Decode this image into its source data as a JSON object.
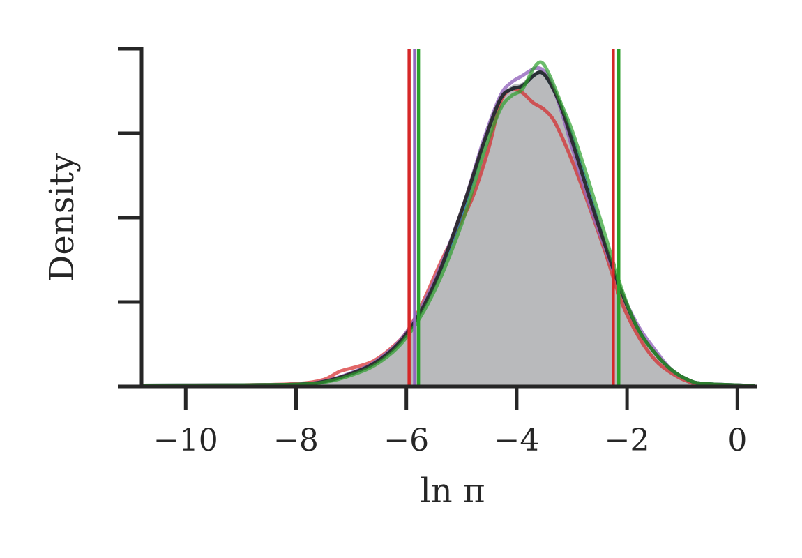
{
  "chart_data": {
    "type": "area",
    "xlabel": "ln π",
    "ylabel": "Density",
    "xlim": [
      -10.8,
      0.35
    ],
    "ylim": [
      0,
      1.0
    ],
    "xticks": [
      {
        "value": -10,
        "label": "−10"
      },
      {
        "value": -8,
        "label": "−8"
      },
      {
        "value": -6,
        "label": "−6"
      },
      {
        "value": -4,
        "label": "−4"
      },
      {
        "value": -2,
        "label": "−2"
      },
      {
        "value": 0,
        "label": "0"
      }
    ],
    "yticks": [
      0,
      0.25,
      0.5,
      0.75,
      1.0
    ],
    "yticklabels_shown": false,
    "grid": false,
    "reference": {
      "color": "#b9babc",
      "x": [
        -10.8,
        -9,
        -8,
        -7.5,
        -7,
        -6.5,
        -6,
        -5.5,
        -5,
        -4.6,
        -4.3,
        -4.1,
        -3.9,
        -3.7,
        -3.5,
        -3.3,
        -3,
        -2.7,
        -2.4,
        -2.1,
        -1.8,
        -1.5,
        -1.2,
        -0.9,
        -0.6,
        -0.3,
        0.3
      ],
      "y": [
        0.003,
        0.004,
        0.006,
        0.015,
        0.04,
        0.08,
        0.16,
        0.31,
        0.53,
        0.73,
        0.85,
        0.89,
        0.9,
        0.93,
        0.92,
        0.86,
        0.72,
        0.57,
        0.42,
        0.28,
        0.17,
        0.1,
        0.05,
        0.02,
        0.008,
        0.003,
        0.002
      ]
    },
    "series": [
      {
        "color": "#d62728",
        "opacity": 0.7,
        "x": [
          -10.8,
          -9,
          -8,
          -7.5,
          -7.2,
          -6.9,
          -6.6,
          -6.3,
          -6,
          -5.7,
          -5.4,
          -5.1,
          -4.8,
          -4.5,
          -4.3,
          -4.1,
          -3.9,
          -3.7,
          -3.5,
          -3.3,
          -3,
          -2.7,
          -2.4,
          -2.1,
          -1.8,
          -1.5,
          -1.2,
          -0.9,
          -0.6,
          0.3
        ],
        "y": [
          0.003,
          0.004,
          0.008,
          0.02,
          0.045,
          0.058,
          0.075,
          0.11,
          0.16,
          0.25,
          0.36,
          0.46,
          0.56,
          0.71,
          0.84,
          0.88,
          0.87,
          0.84,
          0.82,
          0.78,
          0.67,
          0.54,
          0.4,
          0.25,
          0.15,
          0.08,
          0.04,
          0.015,
          0.005,
          0.002
        ]
      },
      {
        "color": "#1f77b4",
        "opacity": 0.8,
        "x": [
          -10.8,
          -9,
          -8,
          -7.5,
          -7,
          -6.5,
          -6,
          -5.5,
          -5,
          -4.6,
          -4.3,
          -4.1,
          -3.9,
          -3.7,
          -3.55,
          -3.4,
          -3.2,
          -3,
          -2.7,
          -2.4,
          -2.1,
          -1.8,
          -1.5,
          -1.2,
          -0.9,
          -0.6,
          0.3
        ],
        "y": [
          0.003,
          0.004,
          0.006,
          0.014,
          0.038,
          0.078,
          0.155,
          0.3,
          0.51,
          0.72,
          0.85,
          0.88,
          0.89,
          0.92,
          0.93,
          0.9,
          0.83,
          0.74,
          0.58,
          0.42,
          0.28,
          0.17,
          0.1,
          0.05,
          0.02,
          0.008,
          0.002
        ]
      },
      {
        "color": "#9467bd",
        "opacity": 0.8,
        "x": [
          -10.8,
          -9,
          -8,
          -7.5,
          -7,
          -6.5,
          -6,
          -5.5,
          -5,
          -4.6,
          -4.3,
          -4.1,
          -3.9,
          -3.7,
          -3.55,
          -3.4,
          -3.2,
          -3,
          -2.7,
          -2.4,
          -2.1,
          -1.8,
          -1.5,
          -1.2,
          -0.9,
          -0.6,
          0.3
        ],
        "y": [
          0.003,
          0.004,
          0.006,
          0.015,
          0.04,
          0.08,
          0.16,
          0.31,
          0.52,
          0.73,
          0.86,
          0.9,
          0.92,
          0.94,
          0.94,
          0.91,
          0.82,
          0.71,
          0.55,
          0.41,
          0.28,
          0.18,
          0.11,
          0.05,
          0.02,
          0.008,
          0.002
        ]
      },
      {
        "color": "#262626",
        "opacity": 0.9,
        "x": [
          -10.8,
          -9,
          -8,
          -7.5,
          -7,
          -6.5,
          -6,
          -5.5,
          -5,
          -4.6,
          -4.3,
          -4.1,
          -3.9,
          -3.7,
          -3.55,
          -3.4,
          -3.2,
          -3,
          -2.7,
          -2.4,
          -2.1,
          -1.8,
          -1.5,
          -1.2,
          -0.9,
          -0.6,
          0.3
        ],
        "y": [
          0.003,
          0.004,
          0.006,
          0.014,
          0.038,
          0.077,
          0.155,
          0.3,
          0.52,
          0.72,
          0.85,
          0.88,
          0.89,
          0.92,
          0.93,
          0.9,
          0.83,
          0.73,
          0.57,
          0.42,
          0.28,
          0.17,
          0.1,
          0.05,
          0.02,
          0.008,
          0.002
        ]
      },
      {
        "color": "#2ca02c",
        "opacity": 0.7,
        "x": [
          -10.8,
          -9,
          -8,
          -7.5,
          -7,
          -6.5,
          -6,
          -5.5,
          -5,
          -4.6,
          -4.3,
          -4.1,
          -3.9,
          -3.7,
          -3.55,
          -3.4,
          -3.2,
          -3,
          -2.7,
          -2.4,
          -2.1,
          -1.8,
          -1.5,
          -1.2,
          -0.9,
          -0.6,
          0.3
        ],
        "y": [
          0.003,
          0.004,
          0.006,
          0.012,
          0.033,
          0.07,
          0.145,
          0.28,
          0.48,
          0.69,
          0.82,
          0.86,
          0.88,
          0.94,
          0.96,
          0.92,
          0.84,
          0.76,
          0.61,
          0.45,
          0.29,
          0.17,
          0.1,
          0.05,
          0.02,
          0.008,
          0.002
        ]
      }
    ],
    "vlines": [
      {
        "x": -5.95,
        "color": "#d62728"
      },
      {
        "x": -5.85,
        "color": "#9467bd"
      },
      {
        "x": -5.78,
        "color": "#2ca02c"
      },
      {
        "x": -2.25,
        "color": "#d62728"
      },
      {
        "x": -2.15,
        "color": "#2ca02c"
      }
    ]
  }
}
